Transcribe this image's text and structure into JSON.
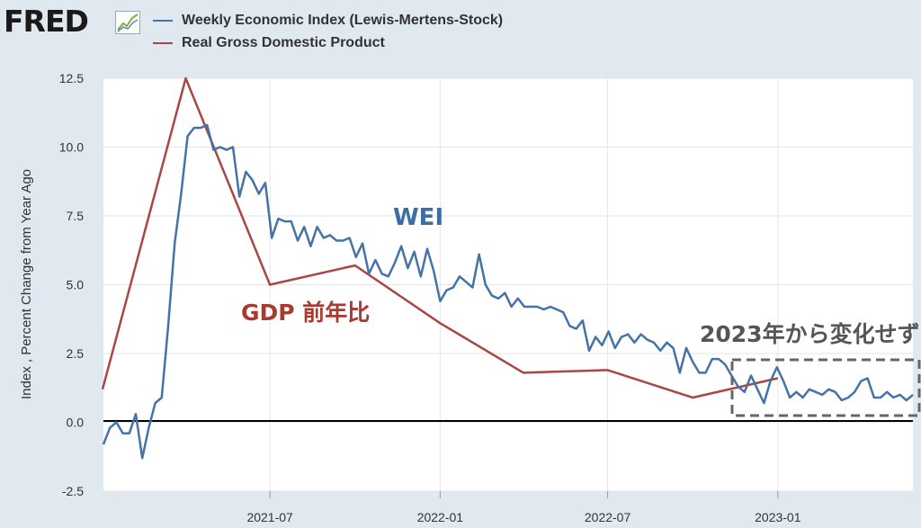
{
  "header": {
    "logo_text": "FRED",
    "legend": [
      {
        "label": "Weekly Economic Index (Lewis-Mertens-Stock)",
        "color": "#4572a7"
      },
      {
        "label": "Real Gross Domestic Product",
        "color": "#aa4643"
      }
    ]
  },
  "chart_data": {
    "type": "line",
    "ylabel": "Index , Percent Change from Year Ago",
    "ylim": [
      -2.5,
      12.5
    ],
    "yticks": [
      -2.5,
      0.0,
      2.5,
      5.0,
      7.5,
      10.0,
      12.5
    ],
    "ytick_labels": [
      "-2.5",
      "0.0",
      "2.5",
      "5.0",
      "7.5",
      "10.0",
      "12.5"
    ],
    "xlim": [
      "2021-01-02",
      "2023-05-27"
    ],
    "xticks": [
      "2021-07-01",
      "2022-01-01",
      "2022-07-01",
      "2023-01-01"
    ],
    "xtick_labels": [
      "2021-07",
      "2022-01",
      "2022-07",
      "2023-01"
    ],
    "grid": true,
    "zero_line": true,
    "series": [
      {
        "name": "Weekly Economic Index (Lewis-Mertens-Stock)",
        "color": "#4572a7",
        "x": [
          "2021-01-02",
          "2021-01-09",
          "2021-01-16",
          "2021-01-23",
          "2021-01-30",
          "2021-02-06",
          "2021-02-13",
          "2021-02-20",
          "2021-02-27",
          "2021-03-06",
          "2021-03-13",
          "2021-03-20",
          "2021-03-27",
          "2021-04-03",
          "2021-04-10",
          "2021-04-17",
          "2021-04-24",
          "2021-05-01",
          "2021-05-08",
          "2021-05-15",
          "2021-05-22",
          "2021-05-29",
          "2021-06-05",
          "2021-06-12",
          "2021-06-19",
          "2021-06-26",
          "2021-07-03",
          "2021-07-10",
          "2021-07-17",
          "2021-07-24",
          "2021-07-31",
          "2021-08-07",
          "2021-08-14",
          "2021-08-21",
          "2021-08-28",
          "2021-09-04",
          "2021-09-11",
          "2021-09-18",
          "2021-09-25",
          "2021-10-02",
          "2021-10-09",
          "2021-10-16",
          "2021-10-23",
          "2021-10-30",
          "2021-11-06",
          "2021-11-13",
          "2021-11-20",
          "2021-11-27",
          "2021-12-04",
          "2021-12-11",
          "2021-12-18",
          "2021-12-25",
          "2022-01-01",
          "2022-01-08",
          "2022-01-15",
          "2022-01-22",
          "2022-01-29",
          "2022-02-05",
          "2022-02-12",
          "2022-02-19",
          "2022-02-26",
          "2022-03-05",
          "2022-03-12",
          "2022-03-19",
          "2022-03-26",
          "2022-04-02",
          "2022-04-09",
          "2022-04-16",
          "2022-04-23",
          "2022-04-30",
          "2022-05-07",
          "2022-05-14",
          "2022-05-21",
          "2022-05-28",
          "2022-06-04",
          "2022-06-11",
          "2022-06-18",
          "2022-06-25",
          "2022-07-02",
          "2022-07-09",
          "2022-07-16",
          "2022-07-23",
          "2022-07-30",
          "2022-08-06",
          "2022-08-13",
          "2022-08-20",
          "2022-08-27",
          "2022-09-03",
          "2022-09-10",
          "2022-09-17",
          "2022-09-24",
          "2022-10-01",
          "2022-10-08",
          "2022-10-15",
          "2022-10-22",
          "2022-10-29",
          "2022-11-05",
          "2022-11-12",
          "2022-11-19",
          "2022-11-26",
          "2022-12-03",
          "2022-12-10",
          "2022-12-17",
          "2022-12-24",
          "2022-12-31",
          "2023-01-07",
          "2023-01-14",
          "2023-01-21",
          "2023-01-28",
          "2023-02-04",
          "2023-02-11",
          "2023-02-18",
          "2023-02-25",
          "2023-03-04",
          "2023-03-11",
          "2023-03-18",
          "2023-03-25",
          "2023-04-01",
          "2023-04-08",
          "2023-04-15",
          "2023-04-22",
          "2023-04-29",
          "2023-05-06",
          "2023-05-13",
          "2023-05-20",
          "2023-05-27"
        ],
        "values": [
          -0.8,
          -0.2,
          0.0,
          -0.4,
          -0.4,
          0.3,
          -1.3,
          -0.2,
          0.7,
          0.9,
          3.5,
          6.5,
          8.3,
          10.4,
          10.7,
          10.7,
          10.8,
          9.9,
          10.0,
          9.9,
          10.0,
          8.2,
          9.1,
          8.8,
          8.3,
          8.7,
          6.7,
          7.4,
          7.3,
          7.3,
          6.6,
          7.1,
          6.4,
          7.1,
          6.7,
          6.8,
          6.6,
          6.6,
          6.7,
          6.0,
          6.5,
          5.4,
          5.9,
          5.4,
          5.3,
          5.8,
          6.4,
          5.6,
          6.2,
          5.3,
          6.3,
          5.5,
          4.4,
          4.8,
          4.9,
          5.3,
          5.1,
          4.9,
          6.1,
          5.0,
          4.6,
          4.5,
          4.7,
          4.2,
          4.5,
          4.2,
          4.2,
          4.2,
          4.1,
          4.2,
          4.1,
          4.0,
          3.5,
          3.4,
          3.7,
          2.6,
          3.1,
          2.8,
          3.3,
          2.7,
          3.1,
          3.2,
          2.9,
          3.2,
          3.0,
          2.9,
          2.6,
          2.9,
          2.7,
          1.8,
          2.7,
          2.2,
          1.8,
          1.8,
          2.3,
          2.3,
          2.1,
          1.7,
          1.3,
          1.1,
          1.7,
          1.2,
          0.7,
          1.5,
          2.0,
          1.5,
          0.9,
          1.1,
          0.9,
          1.2,
          1.1,
          1.0,
          1.2,
          1.1,
          0.8,
          0.9,
          1.1,
          1.5,
          1.6,
          0.9,
          0.9,
          1.1,
          0.9,
          1.0,
          0.8,
          1.0
        ]
      },
      {
        "name": "Real Gross Domestic Product",
        "color": "#aa4643",
        "x": [
          "2021-01-01",
          "2021-04-01",
          "2021-07-01",
          "2021-10-01",
          "2022-01-01",
          "2022-04-01",
          "2022-07-01",
          "2022-10-01",
          "2023-01-01"
        ],
        "values": [
          1.2,
          12.5,
          5.0,
          5.7,
          3.6,
          1.8,
          1.9,
          0.9,
          1.6
        ]
      }
    ],
    "annotations": [
      {
        "text": "WEI",
        "color": "#3a6ea5"
      },
      {
        "text": "GDP 前年比",
        "color": "#a83a30"
      },
      {
        "text": "2023年から変化せず",
        "color": "#555555"
      }
    ]
  }
}
